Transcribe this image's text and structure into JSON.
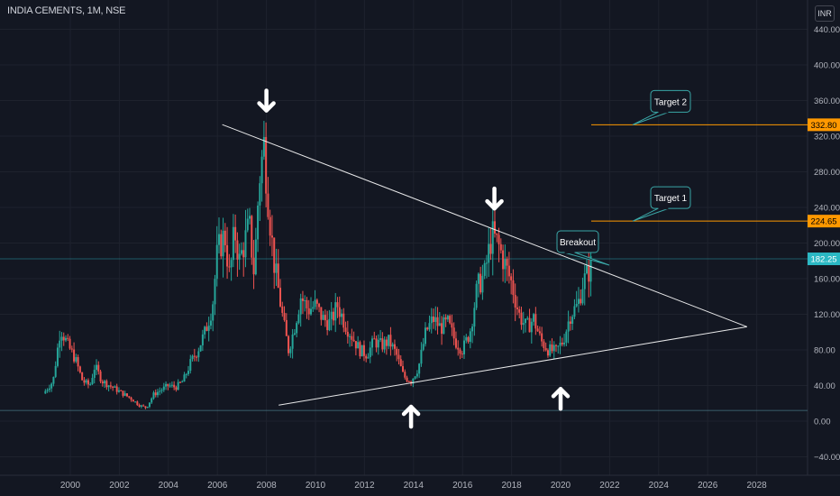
{
  "header": {
    "title": "INDIA CEMENTS, 1M, NSE",
    "currency": "INR"
  },
  "colors": {
    "bg": "#131722",
    "grid": "#1e222d",
    "up": "#26a69a",
    "down": "#ef5350",
    "target": "#ff9800",
    "price": "#2bb8c4",
    "text": "#b2b5be",
    "trend": "#ffffff"
  },
  "chart_data": {
    "type": "candlestick",
    "title": "INDIA CEMENTS, 1M, NSE",
    "y_axis": {
      "min": -40,
      "max": 440,
      "ticks": [
        -40,
        0,
        40,
        80,
        120,
        160,
        200,
        240,
        280,
        320,
        360,
        400,
        440
      ],
      "tick_labels": [
        "−40.00",
        "0.00",
        "40.00",
        "80.00",
        "120.00",
        "160.00",
        "200.00",
        "240.00",
        "280.00",
        "320.00",
        "360.00",
        "400.00",
        "440.00"
      ]
    },
    "x_axis": {
      "ticks": [
        2000,
        2002,
        2004,
        2006,
        2008,
        2010,
        2012,
        2014,
        2016,
        2018,
        2020,
        2022,
        2024,
        2026,
        2028
      ],
      "tick_labels": [
        "2000",
        "2002",
        "2004",
        "2006",
        "2008",
        "2010",
        "2012",
        "2014",
        "2016",
        "2018",
        "2020",
        "2022",
        "2024",
        "2026",
        "2028"
      ]
    },
    "price_path": [
      [
        1998.9,
        31
      ],
      [
        1999.3,
        45
      ],
      [
        1999.6,
        105
      ],
      [
        1999.9,
        85
      ],
      [
        2000.2,
        70
      ],
      [
        2000.5,
        45
      ],
      [
        2000.8,
        40
      ],
      [
        2001.0,
        62
      ],
      [
        2001.3,
        45
      ],
      [
        2001.6,
        40
      ],
      [
        2001.9,
        35
      ],
      [
        2002.2,
        30
      ],
      [
        2002.5,
        25
      ],
      [
        2002.8,
        18
      ],
      [
        2003.1,
        15
      ],
      [
        2003.4,
        30
      ],
      [
        2003.7,
        35
      ],
      [
        2004.0,
        40
      ],
      [
        2004.3,
        38
      ],
      [
        2004.6,
        45
      ],
      [
        2004.9,
        65
      ],
      [
        2005.2,
        80
      ],
      [
        2005.5,
        100
      ],
      [
        2005.8,
        130
      ],
      [
        2006.0,
        190
      ],
      [
        2006.3,
        210
      ],
      [
        2006.5,
        160
      ],
      [
        2006.7,
        215
      ],
      [
        2006.9,
        180
      ],
      [
        2007.1,
        200
      ],
      [
        2007.3,
        220
      ],
      [
        2007.5,
        165
      ],
      [
        2007.7,
        270
      ],
      [
        2007.9,
        310
      ],
      [
        2008.1,
        240
      ],
      [
        2008.3,
        180
      ],
      [
        2008.5,
        145
      ],
      [
        2008.7,
        110
      ],
      [
        2008.9,
        80
      ],
      [
        2009.1,
        100
      ],
      [
        2009.4,
        140
      ],
      [
        2009.7,
        125
      ],
      [
        2010.0,
        130
      ],
      [
        2010.3,
        115
      ],
      [
        2010.6,
        110
      ],
      [
        2010.9,
        130
      ],
      [
        2011.2,
        110
      ],
      [
        2011.5,
        95
      ],
      [
        2011.8,
        80
      ],
      [
        2012.1,
        75
      ],
      [
        2012.4,
        90
      ],
      [
        2012.7,
        85
      ],
      [
        2013.0,
        90
      ],
      [
        2013.3,
        75
      ],
      [
        2013.6,
        50
      ],
      [
        2013.9,
        45
      ],
      [
        2014.2,
        60
      ],
      [
        2014.5,
        100
      ],
      [
        2014.8,
        115
      ],
      [
        2015.1,
        105
      ],
      [
        2015.4,
        110
      ],
      [
        2015.7,
        90
      ],
      [
        2016.0,
        80
      ],
      [
        2016.3,
        100
      ],
      [
        2016.6,
        150
      ],
      [
        2016.9,
        165
      ],
      [
        2017.2,
        210
      ],
      [
        2017.5,
        195
      ],
      [
        2017.8,
        170
      ],
      [
        2018.0,
        155
      ],
      [
        2018.3,
        120
      ],
      [
        2018.6,
        105
      ],
      [
        2018.9,
        115
      ],
      [
        2019.2,
        90
      ],
      [
        2019.5,
        80
      ],
      [
        2019.8,
        78
      ],
      [
        2020.1,
        90
      ],
      [
        2020.4,
        120
      ],
      [
        2020.7,
        130
      ],
      [
        2020.9,
        155
      ],
      [
        2021.1,
        165
      ],
      [
        2021.3,
        180
      ]
    ],
    "annotations": {
      "resistance_line": [
        [
          2006.2,
          333
        ],
        [
          2027.6,
          106
        ]
      ],
      "support_line": [
        [
          2008.5,
          18
        ],
        [
          2027.6,
          106
        ]
      ],
      "target_2": {
        "label": "Target 2",
        "value": 332.8,
        "value_label": "332.80"
      },
      "target_1": {
        "label": "Target 1",
        "value": 224.65,
        "value_label": "224.65"
      },
      "breakout": {
        "label": "Breakout"
      },
      "current_price": {
        "value": 182.25,
        "value_label": "182.25"
      },
      "baseline": {
        "value": 12
      },
      "down_arrows": [
        {
          "x": 2008.0,
          "y": 360
        },
        {
          "x": 2017.3,
          "y": 250
        }
      ],
      "up_arrows": [
        {
          "x": 2013.9,
          "y": 5
        },
        {
          "x": 2020.0,
          "y": 25
        }
      ]
    }
  }
}
